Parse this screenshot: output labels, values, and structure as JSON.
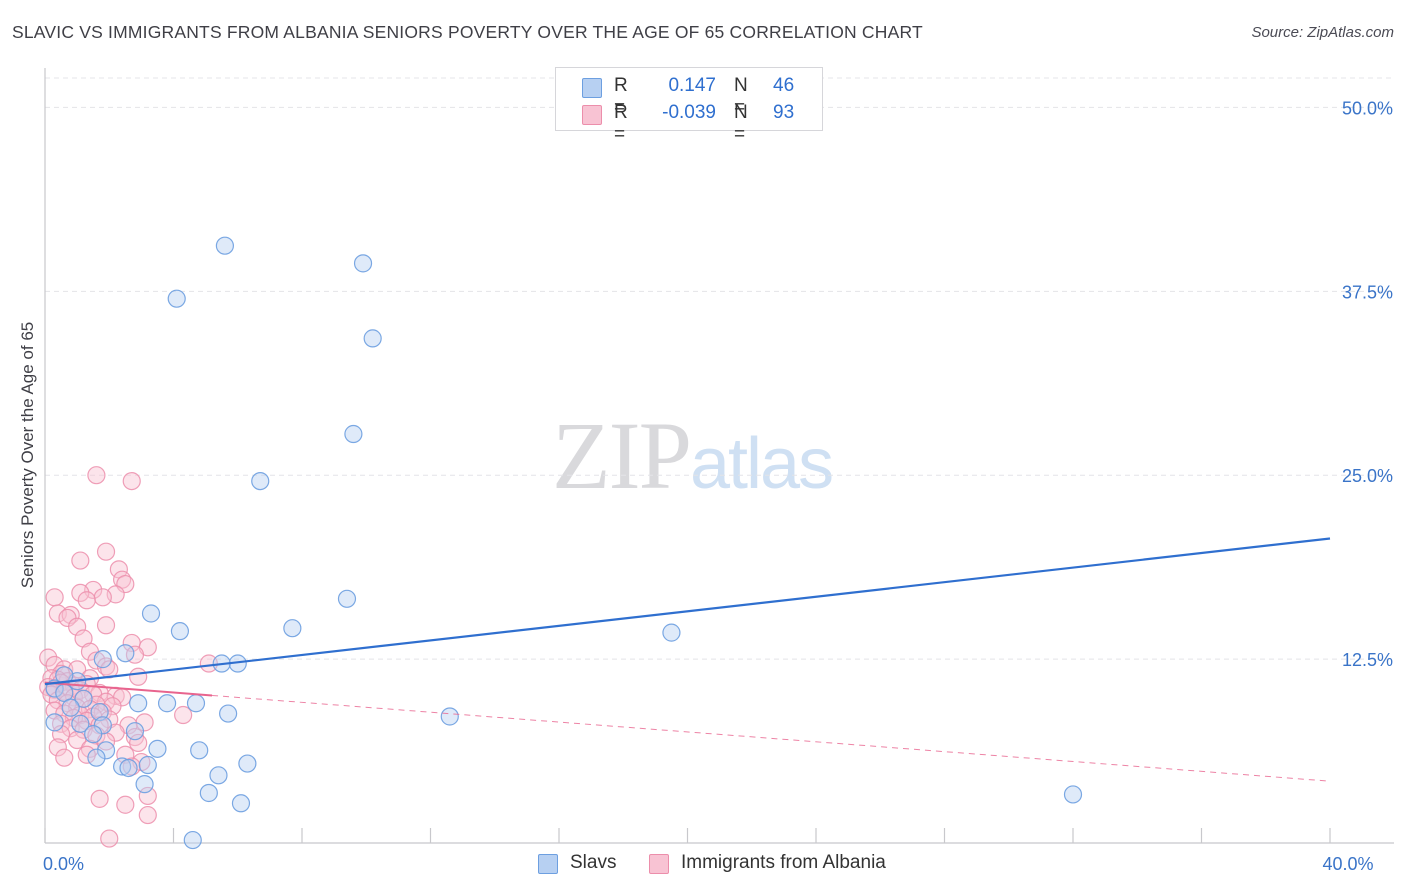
{
  "title": "SLAVIC VS IMMIGRANTS FROM ALBANIA SENIORS POVERTY OVER THE AGE OF 65 CORRELATION CHART",
  "source": "Source: ZipAtlas.com",
  "watermark": {
    "zip": "ZIP",
    "atlas": "atlas"
  },
  "legend_top": [
    {
      "r_label": "R =",
      "r_value": "0.147",
      "n_label": "N =",
      "n_value": "46",
      "color": "#a9c8ef"
    },
    {
      "r_label": "R =",
      "r_value": "-0.039",
      "n_label": "N =",
      "n_value": "93",
      "color": "#f6b8cb"
    }
  ],
  "colors": {
    "slavs_fill": "#b7d0f2",
    "slavs_stroke": "#6d9fe0",
    "slavs_line": "#2f6fcf",
    "alb_fill": "#f8c3d3",
    "alb_stroke": "#ec8eab",
    "alb_line": "#e8648e",
    "grid": "#e4e4e8",
    "axis": "#c8c8cc",
    "tick_label": "#3a74c8"
  },
  "chart_data": {
    "type": "scatter",
    "title": "SLAVIC VS IMMIGRANTS FROM ALBANIA SENIORS POVERTY OVER THE AGE OF 65 CORRELATION CHART",
    "xlabel": "",
    "ylabel": "Seniors Poverty Over the Age of 65",
    "xlim": [
      0,
      40
    ],
    "ylim": [
      0,
      52
    ],
    "x_tick_labels": [
      {
        "value": 0,
        "label": "0.0%"
      },
      {
        "value": 40,
        "label": "40.0%"
      }
    ],
    "x_minor_ticks": [
      0,
      4,
      8,
      12,
      16,
      20,
      24,
      28,
      32,
      36,
      40
    ],
    "y_ticks": [
      {
        "value": 12.5,
        "label": "12.5%"
      },
      {
        "value": 25,
        "label": "25.0%"
      },
      {
        "value": 37.5,
        "label": "37.5%"
      },
      {
        "value": 50,
        "label": "50.0%"
      }
    ],
    "grid": true,
    "legend_position": "bottom-center",
    "series": [
      {
        "name": "Slavs",
        "r": 0.147,
        "n": 46,
        "trend": {
          "x0": 0,
          "y0": 10.8,
          "x1": 40,
          "y1": 20.7,
          "style": "solid",
          "x_end": 40
        },
        "points": [
          [
            5.6,
            40.6
          ],
          [
            9.9,
            39.4
          ],
          [
            4.1,
            37.0
          ],
          [
            10.2,
            34.3
          ],
          [
            9.6,
            27.8
          ],
          [
            6.7,
            24.6
          ],
          [
            9.4,
            16.6
          ],
          [
            3.3,
            15.6
          ],
          [
            4.2,
            14.4
          ],
          [
            7.7,
            14.6
          ],
          [
            19.5,
            14.3
          ],
          [
            2.5,
            12.9
          ],
          [
            1.8,
            12.5
          ],
          [
            6.0,
            12.2
          ],
          [
            5.5,
            12.2
          ],
          [
            1.0,
            11.0
          ],
          [
            0.3,
            10.5
          ],
          [
            0.6,
            10.2
          ],
          [
            1.2,
            9.8
          ],
          [
            3.8,
            9.5
          ],
          [
            2.9,
            9.5
          ],
          [
            4.7,
            9.5
          ],
          [
            0.8,
            9.2
          ],
          [
            1.7,
            8.9
          ],
          [
            5.7,
            8.8
          ],
          [
            12.6,
            8.6
          ],
          [
            0.3,
            8.2
          ],
          [
            1.1,
            8.1
          ],
          [
            1.8,
            8.0
          ],
          [
            2.8,
            7.6
          ],
          [
            1.5,
            7.4
          ],
          [
            3.5,
            6.4
          ],
          [
            4.8,
            6.3
          ],
          [
            1.9,
            6.3
          ],
          [
            1.6,
            5.8
          ],
          [
            3.2,
            5.3
          ],
          [
            6.3,
            5.4
          ],
          [
            2.4,
            5.2
          ],
          [
            2.6,
            5.1
          ],
          [
            5.4,
            4.6
          ],
          [
            3.1,
            4.0
          ],
          [
            5.1,
            3.4
          ],
          [
            6.1,
            2.7
          ],
          [
            32.0,
            3.3
          ],
          [
            4.6,
            0.2
          ],
          [
            0.6,
            11.4
          ]
        ]
      },
      {
        "name": "Immigrants from Albania",
        "r": -0.039,
        "n": 93,
        "trend": {
          "x0": 0,
          "y0": 10.9,
          "x1": 40,
          "y1": 4.2,
          "style": "solid-then-dashed",
          "solid_until": 5.2,
          "x_end": 40
        },
        "points": [
          [
            1.6,
            25.0
          ],
          [
            2.7,
            24.6
          ],
          [
            1.9,
            19.8
          ],
          [
            1.1,
            19.2
          ],
          [
            2.3,
            18.6
          ],
          [
            2.4,
            17.9
          ],
          [
            2.5,
            17.6
          ],
          [
            1.5,
            17.2
          ],
          [
            1.1,
            17.0
          ],
          [
            2.2,
            16.9
          ],
          [
            0.3,
            16.7
          ],
          [
            1.8,
            16.7
          ],
          [
            1.3,
            16.5
          ],
          [
            0.4,
            15.6
          ],
          [
            0.8,
            15.5
          ],
          [
            0.7,
            15.3
          ],
          [
            1.9,
            14.8
          ],
          [
            1.0,
            14.7
          ],
          [
            1.2,
            13.9
          ],
          [
            2.7,
            13.6
          ],
          [
            3.2,
            13.3
          ],
          [
            1.4,
            13.0
          ],
          [
            2.8,
            12.8
          ],
          [
            0.1,
            12.6
          ],
          [
            1.6,
            12.4
          ],
          [
            5.1,
            12.2
          ],
          [
            0.3,
            12.1
          ],
          [
            1.9,
            12.0
          ],
          [
            0.6,
            11.8
          ],
          [
            2.0,
            11.8
          ],
          [
            1.0,
            11.8
          ],
          [
            0.5,
            11.5
          ],
          [
            2.9,
            11.3
          ],
          [
            0.2,
            11.2
          ],
          [
            1.4,
            11.2
          ],
          [
            0.4,
            11.1
          ],
          [
            0.7,
            11.0
          ],
          [
            0.5,
            10.9
          ],
          [
            1.3,
            10.8
          ],
          [
            0.9,
            10.7
          ],
          [
            0.1,
            10.6
          ],
          [
            0.8,
            10.5
          ],
          [
            0.3,
            10.4
          ],
          [
            1.1,
            10.4
          ],
          [
            0.6,
            10.3
          ],
          [
            1.7,
            10.2
          ],
          [
            0.2,
            10.1
          ],
          [
            1.5,
            10.1
          ],
          [
            2.2,
            10.0
          ],
          [
            0.9,
            9.9
          ],
          [
            2.4,
            9.9
          ],
          [
            1.2,
            9.8
          ],
          [
            0.4,
            9.7
          ],
          [
            1.9,
            9.6
          ],
          [
            0.7,
            9.5
          ],
          [
            1.6,
            9.4
          ],
          [
            2.1,
            9.3
          ],
          [
            1.0,
            9.2
          ],
          [
            1.4,
            9.1
          ],
          [
            0.3,
            9.0
          ],
          [
            1.8,
            8.9
          ],
          [
            0.6,
            8.8
          ],
          [
            1.1,
            8.7
          ],
          [
            4.3,
            8.7
          ],
          [
            1.5,
            8.6
          ],
          [
            0.9,
            8.5
          ],
          [
            2.0,
            8.4
          ],
          [
            1.3,
            8.3
          ],
          [
            3.1,
            8.2
          ],
          [
            0.5,
            8.1
          ],
          [
            1.7,
            8.0
          ],
          [
            2.6,
            8.0
          ],
          [
            0.8,
            7.8
          ],
          [
            1.2,
            7.7
          ],
          [
            2.2,
            7.5
          ],
          [
            0.5,
            7.4
          ],
          [
            1.6,
            7.3
          ],
          [
            2.8,
            7.2
          ],
          [
            1.0,
            7.0
          ],
          [
            1.9,
            6.9
          ],
          [
            2.9,
            6.8
          ],
          [
            0.4,
            6.5
          ],
          [
            1.4,
            6.4
          ],
          [
            2.5,
            6.0
          ],
          [
            1.3,
            6.0
          ],
          [
            0.6,
            5.8
          ],
          [
            3.0,
            5.5
          ],
          [
            2.7,
            5.2
          ],
          [
            3.2,
            3.2
          ],
          [
            1.7,
            3.0
          ],
          [
            2.5,
            2.6
          ],
          [
            3.2,
            1.9
          ],
          [
            2.0,
            0.3
          ]
        ]
      }
    ]
  },
  "legend_bottom": [
    {
      "label": "Slavs",
      "color": "#b7d0f2"
    },
    {
      "label": "Immigrants from Albania",
      "color": "#f8c3d3"
    }
  ]
}
